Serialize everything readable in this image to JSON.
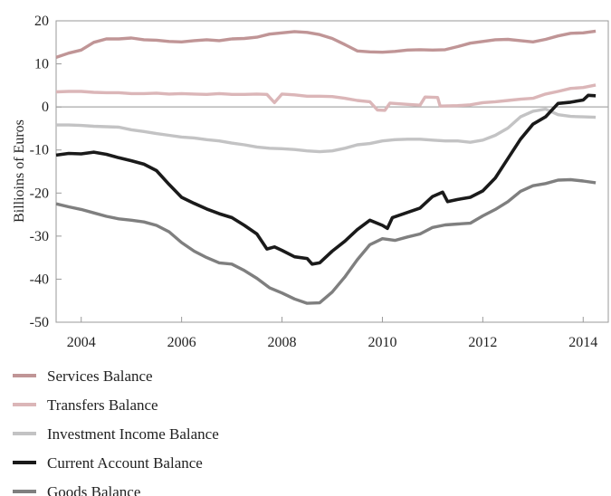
{
  "chart_data": {
    "type": "line",
    "title": "",
    "xlabel": "",
    "ylabel": "Billioins of Euros",
    "xlim": [
      2003.5,
      2014.5
    ],
    "ylim": [
      -50,
      20
    ],
    "x_ticks": [
      2004,
      2006,
      2008,
      2010,
      2012,
      2014
    ],
    "x_tick_labels": [
      "2004",
      "2006",
      "2008",
      "2010",
      "2012",
      "2014"
    ],
    "y_ticks": [
      -50,
      -40,
      -30,
      -20,
      -10,
      0,
      10,
      20
    ],
    "y_tick_labels": [
      "-50",
      "-40",
      "-30",
      "-20",
      "-10",
      "0",
      "10",
      "20"
    ],
    "zero_line": true,
    "grid": false,
    "legend_position": "bottom",
    "series": [
      {
        "name": "Services Balance",
        "color": "#c09596",
        "points": [
          [
            2003.5,
            11.5
          ],
          [
            2003.75,
            12.5
          ],
          [
            2004.0,
            13.2
          ],
          [
            2004.25,
            15.0
          ],
          [
            2004.5,
            15.8
          ],
          [
            2004.75,
            15.8
          ],
          [
            2005.0,
            16.0
          ],
          [
            2005.25,
            15.6
          ],
          [
            2005.5,
            15.5
          ],
          [
            2005.75,
            15.2
          ],
          [
            2006.0,
            15.1
          ],
          [
            2006.25,
            15.4
          ],
          [
            2006.5,
            15.6
          ],
          [
            2006.75,
            15.4
          ],
          [
            2007.0,
            15.8
          ],
          [
            2007.25,
            15.9
          ],
          [
            2007.5,
            16.2
          ],
          [
            2007.75,
            16.9
          ],
          [
            2008.0,
            17.2
          ],
          [
            2008.25,
            17.5
          ],
          [
            2008.5,
            17.3
          ],
          [
            2008.75,
            16.8
          ],
          [
            2009.0,
            15.9
          ],
          [
            2009.25,
            14.5
          ],
          [
            2009.5,
            13.0
          ],
          [
            2009.75,
            12.8
          ],
          [
            2010.0,
            12.7
          ],
          [
            2010.25,
            12.9
          ],
          [
            2010.5,
            13.2
          ],
          [
            2010.75,
            13.3
          ],
          [
            2011.0,
            13.2
          ],
          [
            2011.25,
            13.3
          ],
          [
            2011.5,
            14.0
          ],
          [
            2011.75,
            14.8
          ],
          [
            2012.0,
            15.2
          ],
          [
            2012.25,
            15.6
          ],
          [
            2012.5,
            15.7
          ],
          [
            2012.75,
            15.4
          ],
          [
            2013.0,
            15.1
          ],
          [
            2013.25,
            15.7
          ],
          [
            2013.5,
            16.5
          ],
          [
            2013.75,
            17.1
          ],
          [
            2014.0,
            17.2
          ],
          [
            2014.25,
            17.6
          ]
        ]
      },
      {
        "name": "Transfers Balance",
        "color": "#dbb6b8",
        "points": [
          [
            2003.5,
            3.5
          ],
          [
            2003.75,
            3.6
          ],
          [
            2004.0,
            3.6
          ],
          [
            2004.25,
            3.4
          ],
          [
            2004.5,
            3.3
          ],
          [
            2004.75,
            3.3
          ],
          [
            2005.0,
            3.1
          ],
          [
            2005.25,
            3.1
          ],
          [
            2005.5,
            3.2
          ],
          [
            2005.75,
            3.0
          ],
          [
            2006.0,
            3.1
          ],
          [
            2006.25,
            3.0
          ],
          [
            2006.5,
            2.9
          ],
          [
            2006.75,
            3.1
          ],
          [
            2007.0,
            2.9
          ],
          [
            2007.25,
            2.9
          ],
          [
            2007.5,
            3.0
          ],
          [
            2007.7,
            2.9
          ],
          [
            2007.85,
            1.0
          ],
          [
            2008.0,
            3.0
          ],
          [
            2008.25,
            2.8
          ],
          [
            2008.5,
            2.5
          ],
          [
            2008.75,
            2.5
          ],
          [
            2009.0,
            2.4
          ],
          [
            2009.25,
            2.0
          ],
          [
            2009.5,
            1.5
          ],
          [
            2009.75,
            1.2
          ],
          [
            2009.9,
            -0.7
          ],
          [
            2010.05,
            -0.8
          ],
          [
            2010.15,
            0.9
          ],
          [
            2010.5,
            0.6
          ],
          [
            2010.75,
            0.4
          ],
          [
            2010.85,
            2.3
          ],
          [
            2011.1,
            2.2
          ],
          [
            2011.15,
            0.2
          ],
          [
            2011.5,
            0.3
          ],
          [
            2011.75,
            0.5
          ],
          [
            2012.0,
            1.0
          ],
          [
            2012.25,
            1.2
          ],
          [
            2012.5,
            1.5
          ],
          [
            2012.75,
            1.8
          ],
          [
            2013.0,
            2.0
          ],
          [
            2013.25,
            3.0
          ],
          [
            2013.5,
            3.6
          ],
          [
            2013.75,
            4.3
          ],
          [
            2014.0,
            4.5
          ],
          [
            2014.25,
            5.1
          ]
        ]
      },
      {
        "name": "Investment Income Balance",
        "color": "#c3c3c4",
        "points": [
          [
            2003.5,
            -4.2
          ],
          [
            2003.75,
            -4.2
          ],
          [
            2004.0,
            -4.3
          ],
          [
            2004.25,
            -4.5
          ],
          [
            2004.5,
            -4.6
          ],
          [
            2004.75,
            -4.7
          ],
          [
            2005.0,
            -5.3
          ],
          [
            2005.25,
            -5.7
          ],
          [
            2005.5,
            -6.2
          ],
          [
            2005.75,
            -6.6
          ],
          [
            2006.0,
            -7.0
          ],
          [
            2006.25,
            -7.2
          ],
          [
            2006.5,
            -7.6
          ],
          [
            2006.75,
            -7.9
          ],
          [
            2007.0,
            -8.4
          ],
          [
            2007.25,
            -8.8
          ],
          [
            2007.5,
            -9.3
          ],
          [
            2007.75,
            -9.6
          ],
          [
            2008.0,
            -9.7
          ],
          [
            2008.25,
            -9.9
          ],
          [
            2008.5,
            -10.2
          ],
          [
            2008.75,
            -10.4
          ],
          [
            2009.0,
            -10.2
          ],
          [
            2009.25,
            -9.6
          ],
          [
            2009.5,
            -8.8
          ],
          [
            2009.75,
            -8.5
          ],
          [
            2010.0,
            -7.9
          ],
          [
            2010.25,
            -7.6
          ],
          [
            2010.5,
            -7.5
          ],
          [
            2010.75,
            -7.5
          ],
          [
            2011.0,
            -7.7
          ],
          [
            2011.25,
            -7.9
          ],
          [
            2011.5,
            -7.9
          ],
          [
            2011.75,
            -8.2
          ],
          [
            2012.0,
            -7.7
          ],
          [
            2012.25,
            -6.6
          ],
          [
            2012.5,
            -4.9
          ],
          [
            2012.75,
            -2.3
          ],
          [
            2013.0,
            -1.0
          ],
          [
            2013.25,
            -0.5
          ],
          [
            2013.5,
            -1.8
          ],
          [
            2013.75,
            -2.2
          ],
          [
            2014.0,
            -2.3
          ],
          [
            2014.25,
            -2.4
          ]
        ]
      },
      {
        "name": "Current Account Balance",
        "color": "#1a1a1a",
        "points": [
          [
            2003.5,
            -11.2
          ],
          [
            2003.75,
            -10.8
          ],
          [
            2004.0,
            -10.9
          ],
          [
            2004.25,
            -10.5
          ],
          [
            2004.5,
            -11.0
          ],
          [
            2004.75,
            -11.8
          ],
          [
            2005.0,
            -12.5
          ],
          [
            2005.25,
            -13.3
          ],
          [
            2005.5,
            -14.8
          ],
          [
            2005.75,
            -18.0
          ],
          [
            2006.0,
            -21.0
          ],
          [
            2006.25,
            -22.4
          ],
          [
            2006.5,
            -23.7
          ],
          [
            2006.75,
            -24.8
          ],
          [
            2007.0,
            -25.7
          ],
          [
            2007.25,
            -27.5
          ],
          [
            2007.5,
            -29.5
          ],
          [
            2007.7,
            -33.0
          ],
          [
            2007.85,
            -32.5
          ],
          [
            2008.0,
            -33.3
          ],
          [
            2008.25,
            -34.8
          ],
          [
            2008.5,
            -35.2
          ],
          [
            2008.6,
            -36.5
          ],
          [
            2008.75,
            -36.2
          ],
          [
            2009.0,
            -33.5
          ],
          [
            2009.25,
            -31.2
          ],
          [
            2009.5,
            -28.5
          ],
          [
            2009.75,
            -26.3
          ],
          [
            2010.0,
            -27.5
          ],
          [
            2010.1,
            -28.2
          ],
          [
            2010.2,
            -25.7
          ],
          [
            2010.5,
            -24.5
          ],
          [
            2010.75,
            -23.5
          ],
          [
            2011.0,
            -20.8
          ],
          [
            2011.2,
            -19.8
          ],
          [
            2011.3,
            -22.0
          ],
          [
            2011.5,
            -21.5
          ],
          [
            2011.75,
            -21.0
          ],
          [
            2012.0,
            -19.5
          ],
          [
            2012.25,
            -16.5
          ],
          [
            2012.5,
            -12.0
          ],
          [
            2012.75,
            -7.5
          ],
          [
            2013.0,
            -4.0
          ],
          [
            2013.25,
            -2.3
          ],
          [
            2013.5,
            0.8
          ],
          [
            2013.75,
            1.1
          ],
          [
            2014.0,
            1.6
          ],
          [
            2014.1,
            2.7
          ],
          [
            2014.25,
            2.6
          ]
        ]
      },
      {
        "name": "Goods Balance",
        "color": "#7f7f7f",
        "points": [
          [
            2003.5,
            -22.5
          ],
          [
            2003.75,
            -23.2
          ],
          [
            2004.0,
            -23.8
          ],
          [
            2004.25,
            -24.6
          ],
          [
            2004.5,
            -25.4
          ],
          [
            2004.75,
            -26.0
          ],
          [
            2005.0,
            -26.3
          ],
          [
            2005.25,
            -26.7
          ],
          [
            2005.5,
            -27.5
          ],
          [
            2005.75,
            -29.0
          ],
          [
            2006.0,
            -31.5
          ],
          [
            2006.25,
            -33.5
          ],
          [
            2006.5,
            -35.0
          ],
          [
            2006.75,
            -36.2
          ],
          [
            2007.0,
            -36.5
          ],
          [
            2007.25,
            -38.0
          ],
          [
            2007.5,
            -39.8
          ],
          [
            2007.75,
            -42.0
          ],
          [
            2008.0,
            -43.2
          ],
          [
            2008.25,
            -44.6
          ],
          [
            2008.5,
            -45.6
          ],
          [
            2008.75,
            -45.5
          ],
          [
            2009.0,
            -43.0
          ],
          [
            2009.25,
            -39.5
          ],
          [
            2009.5,
            -35.5
          ],
          [
            2009.75,
            -32.0
          ],
          [
            2010.0,
            -30.6
          ],
          [
            2010.25,
            -31.0
          ],
          [
            2010.5,
            -30.2
          ],
          [
            2010.75,
            -29.5
          ],
          [
            2011.0,
            -28.0
          ],
          [
            2011.25,
            -27.4
          ],
          [
            2011.5,
            -27.2
          ],
          [
            2011.75,
            -27.0
          ],
          [
            2012.0,
            -25.3
          ],
          [
            2012.25,
            -23.8
          ],
          [
            2012.5,
            -22.0
          ],
          [
            2012.75,
            -19.6
          ],
          [
            2013.0,
            -18.3
          ],
          [
            2013.25,
            -17.8
          ],
          [
            2013.5,
            -17.0
          ],
          [
            2013.75,
            -16.9
          ],
          [
            2014.0,
            -17.2
          ],
          [
            2014.25,
            -17.6
          ]
        ]
      }
    ]
  }
}
